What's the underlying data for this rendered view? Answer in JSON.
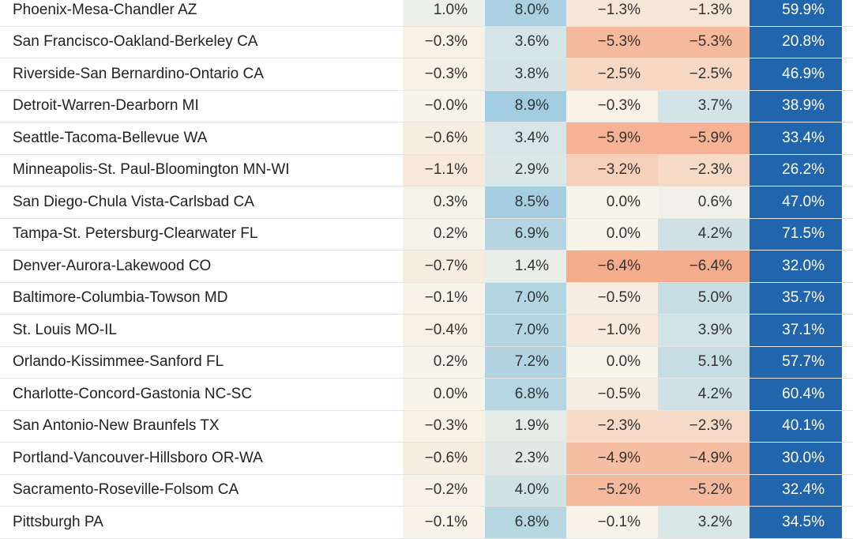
{
  "chart_data": {
    "type": "table",
    "colors": {
      "last_column": "#2166ac",
      "text_on_dark": "#ffffff",
      "negative_scale": "#f4a582",
      "neutral": "#f7f4ea",
      "positive_scale": "#92c5de"
    },
    "rows": [
      {
        "name": "Phoenix-Mesa-Chandler AZ",
        "values": [
          "1.0%",
          "8.0%",
          "−1.3%",
          "−1.3%",
          "59.9%"
        ]
      },
      {
        "name": "San Francisco-Oakland-Berkeley CA",
        "values": [
          "−0.3%",
          "3.6%",
          "−5.3%",
          "−5.3%",
          "20.8%"
        ]
      },
      {
        "name": "Riverside-San Bernardino-Ontario CA",
        "values": [
          "−0.3%",
          "3.8%",
          "−2.5%",
          "−2.5%",
          "46.9%"
        ]
      },
      {
        "name": "Detroit-Warren-Dearborn MI",
        "values": [
          "−0.0%",
          "8.9%",
          "−0.3%",
          "3.7%",
          "38.9%"
        ]
      },
      {
        "name": "Seattle-Tacoma-Bellevue WA",
        "values": [
          "−0.6%",
          "3.4%",
          "−5.9%",
          "−5.9%",
          "33.4%"
        ]
      },
      {
        "name": "Minneapolis-St. Paul-Bloomington MN-WI",
        "values": [
          "−1.1%",
          "2.9%",
          "−3.2%",
          "−2.3%",
          "26.2%"
        ]
      },
      {
        "name": "San Diego-Chula Vista-Carlsbad CA",
        "values": [
          "0.3%",
          "8.5%",
          "0.0%",
          "0.6%",
          "47.0%"
        ]
      },
      {
        "name": "Tampa-St. Petersburg-Clearwater FL",
        "values": [
          "0.2%",
          "6.9%",
          "0.0%",
          "4.2%",
          "71.5%"
        ]
      },
      {
        "name": "Denver-Aurora-Lakewood CO",
        "values": [
          "−0.7%",
          "1.4%",
          "−6.4%",
          "−6.4%",
          "32.0%"
        ]
      },
      {
        "name": "Baltimore-Columbia-Towson MD",
        "values": [
          "−0.1%",
          "7.0%",
          "−0.5%",
          "5.0%",
          "35.7%"
        ]
      },
      {
        "name": "St. Louis MO-IL",
        "values": [
          "−0.4%",
          "7.0%",
          "−1.0%",
          "3.9%",
          "37.1%"
        ]
      },
      {
        "name": "Orlando-Kissimmee-Sanford FL",
        "values": [
          "0.2%",
          "7.2%",
          "0.0%",
          "5.1%",
          "57.7%"
        ]
      },
      {
        "name": "Charlotte-Concord-Gastonia NC-SC",
        "values": [
          "0.0%",
          "6.8%",
          "−0.5%",
          "4.2%",
          "60.4%"
        ]
      },
      {
        "name": "San Antonio-New Braunfels TX",
        "values": [
          "−0.3%",
          "1.9%",
          "−2.3%",
          "−2.3%",
          "40.1%"
        ]
      },
      {
        "name": "Portland-Vancouver-Hillsboro OR-WA",
        "values": [
          "−0.6%",
          "2.3%",
          "−4.9%",
          "−4.9%",
          "30.0%"
        ]
      },
      {
        "name": "Sacramento-Roseville-Folsom CA",
        "values": [
          "−0.2%",
          "4.0%",
          "−5.2%",
          "−5.2%",
          "32.4%"
        ]
      },
      {
        "name": "Pittsburgh PA",
        "values": [
          "−0.1%",
          "6.8%",
          "−0.1%",
          "3.2%",
          "34.5%"
        ]
      }
    ]
  }
}
